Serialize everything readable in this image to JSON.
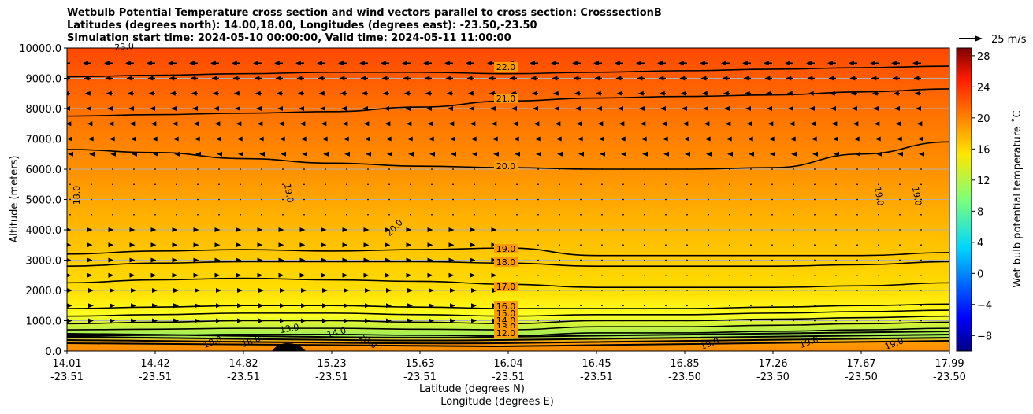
{
  "chart_data": {
    "type": "heatmap",
    "title_lines": [
      "Wetbulb Potential Temperature cross section and wind vectors parallel to cross section: CrosssectionB",
      "Latitudes (degrees north): 14.00,18.00, Longitudes (degrees east): -23.50,-23.50",
      "Simulation start time: 2024-05-10 00:00:00, Valid time: 2024-05-11 11:00:00"
    ],
    "xlabel_lat": "Latitude (degrees N)",
    "xlabel_lon": "Longitude (degrees E)",
    "ylabel": "Altitude (meters)",
    "x_ticks_lat": [
      "14.01",
      "14.42",
      "14.82",
      "15.23",
      "15.63",
      "16.04",
      "16.45",
      "16.85",
      "17.26",
      "17.67",
      "17.99"
    ],
    "x_ticks_lon": [
      "-23.51",
      "-23.51",
      "-23.51",
      "-23.51",
      "-23.51",
      "-23.51",
      "-23.51",
      "-23.50",
      "-23.50",
      "-23.50",
      "-23.50"
    ],
    "y_ticks": [
      "0.0",
      "1000.0",
      "2000.0",
      "3000.0",
      "4000.0",
      "5000.0",
      "6000.0",
      "7000.0",
      "8000.0",
      "9000.0",
      "10000.0"
    ],
    "ylim": [
      0,
      10000
    ],
    "grid": "horizontal",
    "colorbar": {
      "label": "Wet bulb potential temperature ˚C",
      "range": [
        -10,
        29
      ],
      "ticks": [
        "−8",
        "−4",
        "0",
        "4",
        "8",
        "12",
        "16",
        "20",
        "24",
        "28"
      ],
      "colormap": "jet"
    },
    "quiver_key": "25 m/s",
    "contour_labels": [
      "22.0",
      "21.0",
      "20.0",
      "19.0",
      "18.0",
      "17.0",
      "16.0",
      "15.0",
      "14.0",
      "13.0",
      "12.0"
    ],
    "side_labels": [
      "18.0",
      "19.0",
      "20.0",
      "19.0",
      "19.0",
      "18.0",
      "13.0",
      "18.0",
      "14.0",
      "20.0",
      "19.0",
      "19.0",
      "19.0",
      "23.0"
    ],
    "contours": [
      {
        "level": 22,
        "y": [
          9050,
          9100,
          9150,
          9200,
          9200,
          9150,
          9200,
          9250,
          9300,
          9350,
          9400
        ]
      },
      {
        "level": 21,
        "y": [
          7750,
          7800,
          7850,
          7900,
          8050,
          8250,
          8350,
          8400,
          8450,
          8550,
          8650
        ]
      },
      {
        "level": 20,
        "y": [
          6650,
          6550,
          6350,
          6200,
          6100,
          6050,
          6000,
          6000,
          6050,
          6500,
          6900
        ]
      },
      {
        "level": 19,
        "y": [
          3200,
          3300,
          3350,
          3300,
          3350,
          3400,
          3150,
          3150,
          3150,
          3150,
          3250
        ]
      },
      {
        "level": 18,
        "y": [
          2800,
          2900,
          2950,
          2950,
          2950,
          2900,
          2800,
          2800,
          2800,
          2850,
          2950
        ]
      },
      {
        "level": 17,
        "y": [
          2250,
          2350,
          2400,
          2350,
          2300,
          2200,
          2100,
          2100,
          2100,
          2150,
          2250
        ]
      },
      {
        "level": 16,
        "y": [
          1400,
          1450,
          1500,
          1500,
          1450,
          1400,
          1400,
          1400,
          1450,
          1500,
          1550
        ]
      },
      {
        "level": 15,
        "y": [
          1150,
          1200,
          1250,
          1250,
          1200,
          1150,
          1200,
          1200,
          1250,
          1300,
          1350
        ]
      },
      {
        "level": 14,
        "y": [
          900,
          950,
          1000,
          1000,
          950,
          900,
          1000,
          1000,
          1050,
          1100,
          1150
        ]
      },
      {
        "level": 13,
        "y": [
          700,
          720,
          750,
          750,
          720,
          700,
          800,
          800,
          850,
          900,
          950
        ]
      },
      {
        "level": 12,
        "y": [
          500,
          520,
          550,
          550,
          520,
          500,
          600,
          600,
          650,
          700,
          750
        ]
      }
    ]
  }
}
